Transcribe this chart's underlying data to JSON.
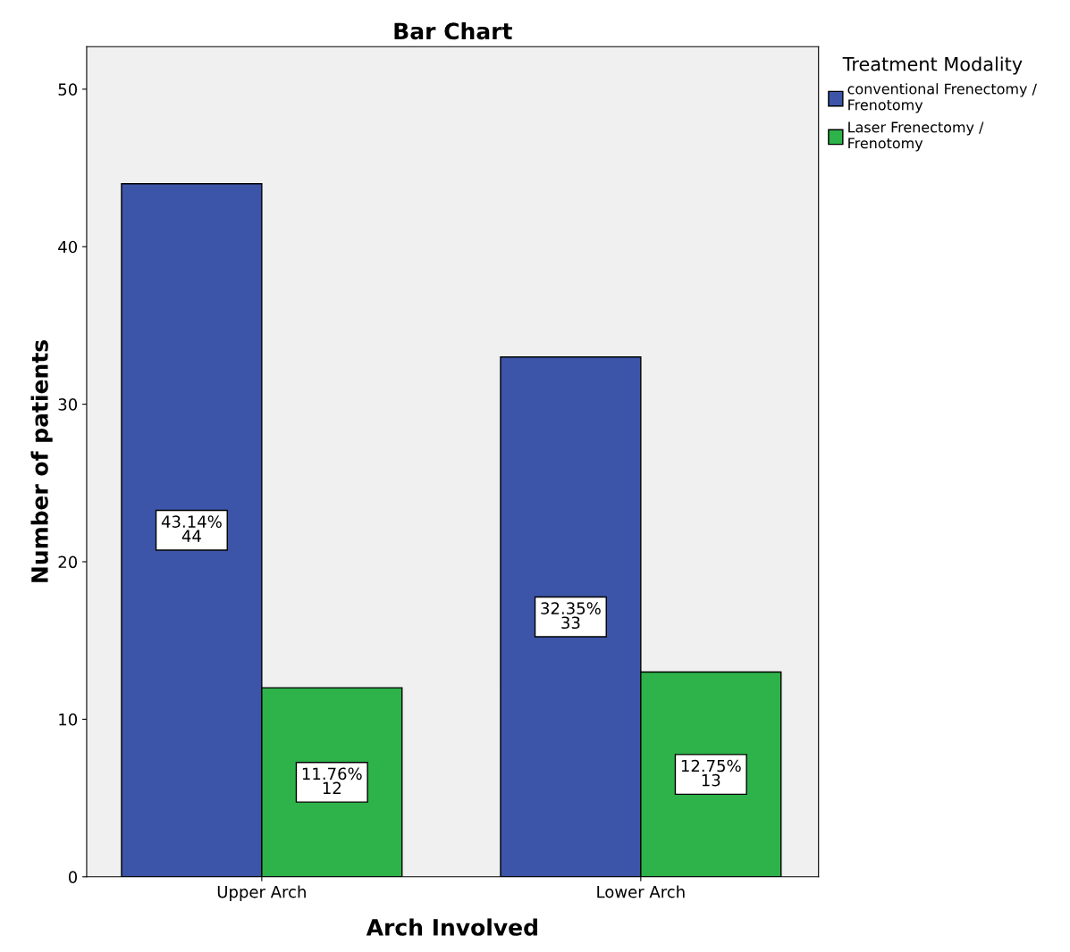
{
  "chart_data": {
    "type": "bar",
    "title": "Bar Chart",
    "xlabel": "Arch Involved",
    "ylabel": "Number of patients",
    "legend_title": "Treatment Modality",
    "categories": [
      "Upper Arch",
      "Lower Arch"
    ],
    "series": [
      {
        "name": "conventional Frenectomy / Frenotomy",
        "color": "#3c55a8",
        "values": [
          44,
          33
        ],
        "value_labels": [
          "43.14%\n44",
          "32.35%\n33"
        ]
      },
      {
        "name": "Laser Frenectomy / Frenotomy",
        "color": "#2db34a",
        "values": [
          12,
          13
        ],
        "value_labels": [
          "11.76%\n12",
          "12.75%\n13"
        ]
      }
    ],
    "ylim": [
      0,
      52.7
    ],
    "yticks": [
      0,
      10,
      20,
      30,
      40,
      50
    ],
    "grid": false,
    "legend": "right"
  }
}
